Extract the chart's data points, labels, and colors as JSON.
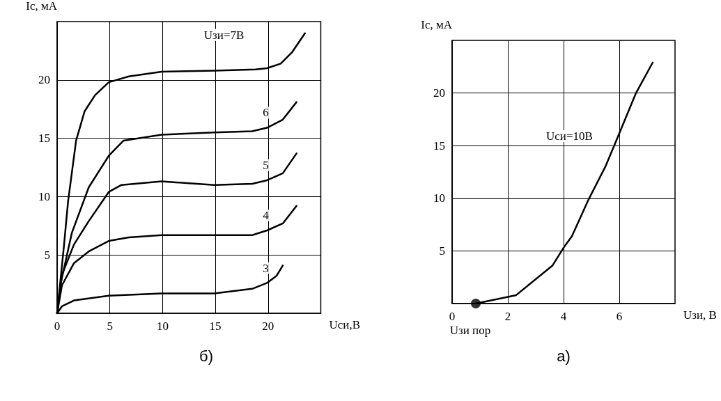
{
  "chart_data": [
    {
      "type": "line",
      "xlabel": "Uси,В",
      "ylabel": "Ic, мА",
      "xlim": [
        0,
        25
      ],
      "ylim": [
        0,
        25
      ],
      "xticks": [
        0,
        5,
        10,
        15,
        20
      ],
      "yticks": [
        5,
        10,
        15,
        20
      ],
      "grid": true,
      "marker": "none",
      "line_style": "solid",
      "series": [
        {
          "name": "Uзи=7В",
          "color": "#000000",
          "x": [
            0,
            0.66,
            1.04,
            1.8,
            2.6,
            3.6,
            4.9,
            6.8,
            9.9,
            14.9,
            18.8,
            19.9,
            21.2,
            22.3,
            23.5
          ],
          "values": [
            0,
            5.9,
            9.6,
            14.8,
            17.3,
            18.7,
            19.8,
            20.3,
            20.7,
            20.8,
            20.9,
            21.0,
            21.4,
            22.4,
            24.0
          ]
        },
        {
          "name": "6",
          "color": "#000000",
          "x": [
            0,
            0.3,
            1.4,
            3.0,
            4.9,
            6.3,
            9.9,
            14.9,
            18.5,
            19.9,
            21.4,
            22.7
          ],
          "values": [
            0,
            2.4,
            6.9,
            10.8,
            13.5,
            14.8,
            15.3,
            15.5,
            15.6,
            15.9,
            16.6,
            18.1
          ]
        },
        {
          "name": "5",
          "color": "#000000",
          "x": [
            0,
            0.46,
            1.6,
            3.0,
            4.9,
            6.1,
            9.9,
            14.9,
            18.5,
            19.9,
            21.4,
            22.7
          ],
          "values": [
            0,
            3.3,
            5.9,
            7.9,
            10.4,
            11.0,
            11.3,
            11.0,
            11.1,
            11.4,
            12.0,
            13.7
          ]
        },
        {
          "name": "4",
          "color": "#000000",
          "x": [
            0,
            0.46,
            1.6,
            3.0,
            4.9,
            6.8,
            9.9,
            14.9,
            18.5,
            19.9,
            21.4,
            22.7
          ],
          "values": [
            0,
            2.4,
            4.3,
            5.3,
            6.2,
            6.5,
            6.7,
            6.7,
            6.7,
            7.1,
            7.7,
            9.2
          ]
        },
        {
          "name": "3",
          "color": "#000000",
          "x": [
            0,
            0.46,
            1.6,
            4.9,
            9.9,
            14.9,
            18.5,
            19.9,
            20.8,
            21.4
          ],
          "values": [
            0,
            0.6,
            1.1,
            1.5,
            1.7,
            1.7,
            2.1,
            2.6,
            3.2,
            4.1
          ]
        }
      ],
      "annotations": [
        "б)"
      ]
    },
    {
      "type": "line",
      "xlabel": "Uзи, В",
      "ylabel": "Ic, мА",
      "xlim": [
        0,
        8
      ],
      "ylim": [
        0,
        25
      ],
      "xticks": [
        0,
        2,
        4,
        6
      ],
      "yticks": [
        5,
        10,
        15,
        20
      ],
      "grid": true,
      "marker": "none",
      "line_style": "solid",
      "series": [
        {
          "name": "Uси=10В",
          "color": "#000000",
          "x": [
            0.85,
            2.3,
            3.04,
            3.6,
            4.0,
            4.3,
            4.9,
            5.5,
            5.96,
            6.6,
            7.2
          ],
          "values": [
            0,
            0.8,
            2.4,
            3.6,
            5.3,
            6.4,
            9.9,
            13.0,
            15.9,
            20.0,
            22.9
          ]
        },
        {
          "type": "scatter",
          "marker": "circle",
          "color": "#000000",
          "x": [
            0.85
          ],
          "values": [
            0
          ]
        }
      ],
      "annotations": [
        {
          "text": "Uзи пор",
          "x": 0.85,
          "y": 0
        },
        "а)"
      ]
    }
  ]
}
